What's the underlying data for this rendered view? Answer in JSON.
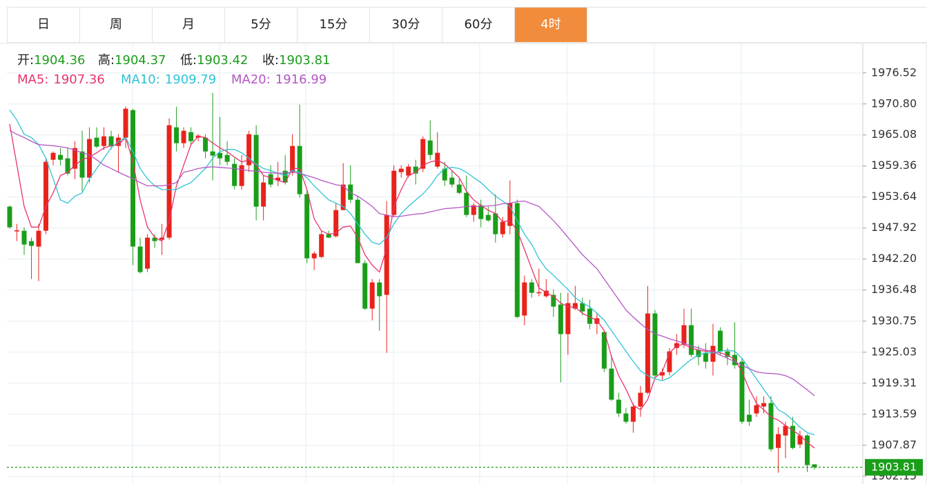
{
  "tabs": [
    "日",
    "周",
    "月",
    "5分",
    "15分",
    "30分",
    "60分",
    "4时"
  ],
  "active_tab": 7,
  "chart_data": {
    "type": "candlestick",
    "ohlc_labels": [
      "开:",
      "高:",
      "低:",
      "收:"
    ],
    "up_color": "#e8231b",
    "down_color": "#1a9e1a",
    "ylim": [
      1902.0,
      1981.7
    ],
    "yticks": [
      1976.52,
      {
        "value": 1970.8,
        "label": "1970.80"
      },
      1965.08,
      1959.36,
      1953.64,
      1947.92,
      {
        "value": 1942.2,
        "label": "1942.20"
      },
      1936.48,
      1930.75,
      1925.03,
      1919.31,
      1913.59,
      1907.87,
      1902.15
    ],
    "grid": true,
    "ohlc": [
      [
        1951.87,
        1952.12,
        1947.8,
        1948.06
      ],
      [
        1947.3,
        1948.69,
        1945.51,
        1947.5
      ],
      [
        1947.42,
        1948.06,
        1942.97,
        1944.88
      ],
      [
        1945.51,
        1946.15,
        1938.52,
        1944.63
      ],
      [
        1944.5,
        1948.69,
        1938.14,
        1947.42
      ],
      [
        1947.42,
        1960.77,
        1946.79,
        1960.13
      ],
      [
        1960.51,
        1962.04,
        1959.5,
        1961.78
      ],
      [
        1961.4,
        1962.67,
        1959.5,
        1960.51
      ],
      [
        1960.77,
        1962.67,
        1957.59,
        1957.97
      ],
      [
        1958.86,
        1963.94,
        1956.95,
        1962.67
      ],
      [
        1962.04,
        1965.85,
        1954.67,
        1957.21
      ],
      [
        1957.21,
        1966.49,
        1956.32,
        1964.33
      ],
      [
        1964.58,
        1966.49,
        1962.67,
        1962.93
      ],
      [
        1963.05,
        1966.49,
        1962.29,
        1964.83
      ],
      [
        1964.83,
        1965.85,
        1962.42,
        1963.05
      ],
      [
        1963.05,
        1965.22,
        1958.22,
        1964.58
      ],
      [
        1964.58,
        1970.3,
        1962.67,
        1969.92
      ],
      [
        1969.66,
        1969.92,
        1941.07,
        1944.5
      ],
      [
        1944.5,
        1946.15,
        1939.54,
        1939.8
      ],
      [
        1940.43,
        1946.79,
        1939.8,
        1946.15
      ],
      [
        1946.15,
        1946.79,
        1944.24,
        1945.51
      ],
      [
        1945.77,
        1948.69,
        1942.97,
        1946.15
      ],
      [
        1946.15,
        1968.14,
        1945.77,
        1966.87
      ],
      [
        1966.49,
        1970.3,
        1962.04,
        1963.56
      ],
      [
        1963.56,
        1966.49,
        1962.67,
        1965.85
      ],
      [
        1965.6,
        1966.49,
        1963.31,
        1963.94
      ],
      [
        1964.58,
        1965.22,
        1963.94,
        1964.96
      ],
      [
        1964.58,
        1965.22,
        1960.77,
        1962.04
      ],
      [
        1962.04,
        1972.84,
        1956.7,
        1961.28
      ],
      [
        1961.78,
        1968.39,
        1959.5,
        1960.77
      ],
      [
        1961.4,
        1963.94,
        1959.5,
        1960.13
      ],
      [
        1959.75,
        1960.77,
        1955.05,
        1955.68
      ],
      [
        1955.68,
        1961.4,
        1955.05,
        1959.5
      ],
      [
        1959.5,
        1965.85,
        1958.22,
        1965.22
      ],
      [
        1965.09,
        1966.87,
        1949.33,
        1951.87
      ],
      [
        1951.87,
        1957.59,
        1949.33,
        1956.32
      ],
      [
        1957.84,
        1959.5,
        1955.43,
        1955.94
      ],
      [
        1956.7,
        1960.13,
        1955.68,
        1957.21
      ],
      [
        1958.48,
        1961.4,
        1955.94,
        1956.32
      ],
      [
        1958.22,
        1965.22,
        1957.59,
        1963.05
      ],
      [
        1963.05,
        1970.68,
        1953.52,
        1954.16
      ],
      [
        1954.16,
        1955.05,
        1941.45,
        1942.34
      ],
      [
        1942.34,
        1943.61,
        1940.18,
        1943.23
      ],
      [
        1942.59,
        1947.42,
        1942.34,
        1946.79
      ],
      [
        1946.79,
        1947.42,
        1946.15,
        1946.15
      ],
      [
        1946.41,
        1952.51,
        1946.15,
        1951.23
      ],
      [
        1951.23,
        1959.88,
        1951.23,
        1955.94
      ],
      [
        1955.94,
        1959.5,
        1952.51,
        1953.14
      ],
      [
        1953.14,
        1953.78,
        1941.45,
        1941.45
      ],
      [
        1941.45,
        1941.96,
        1932.8,
        1933.06
      ],
      [
        1933.06,
        1938.52,
        1930.9,
        1937.89
      ],
      [
        1937.89,
        1938.52,
        1928.99,
        1935.35
      ],
      [
        1935.6,
        1952.89,
        1924.92,
        1950.34
      ],
      [
        1950.34,
        1959.5,
        1949.96,
        1958.48
      ],
      [
        1958.22,
        1959.5,
        1957.21,
        1958.86
      ],
      [
        1957.59,
        1959.75,
        1957.21,
        1959.24
      ],
      [
        1959.24,
        1960.51,
        1955.94,
        1957.97
      ],
      [
        1958.86,
        1964.83,
        1958.22,
        1964.33
      ],
      [
        1964.07,
        1967.76,
        1960.51,
        1961.4
      ],
      [
        1959.24,
        1965.6,
        1958.86,
        1961.78
      ],
      [
        1958.86,
        1960.13,
        1955.68,
        1956.7
      ],
      [
        1957.21,
        1958.48,
        1955.43,
        1955.94
      ],
      [
        1955.94,
        1956.95,
        1954.16,
        1954.41
      ],
      [
        1954.41,
        1957.59,
        1949.96,
        1950.34
      ],
      [
        1950.34,
        1952.51,
        1949.07,
        1952.12
      ],
      [
        1952.12,
        1953.14,
        1948.06,
        1949.58
      ],
      [
        1950.34,
        1951.87,
        1949.07,
        1949.33
      ],
      [
        1950.6,
        1954.16,
        1945.26,
        1946.79
      ],
      [
        1946.79,
        1949.96,
        1946.15,
        1949.07
      ],
      [
        1948.31,
        1956.7,
        1946.79,
        1952.51
      ],
      [
        1952.51,
        1953.14,
        1931.28,
        1931.53
      ],
      [
        1931.79,
        1939.16,
        1930.01,
        1937.89
      ],
      [
        1937.89,
        1938.52,
        1935.09,
        1935.98
      ],
      [
        1935.9,
        1940.43,
        1935.35,
        1936.1
      ],
      [
        1935.35,
        1938.52,
        1935.09,
        1936.36
      ],
      [
        1935.6,
        1936.62,
        1931.53,
        1933.44
      ],
      [
        1933.82,
        1935.98,
        1919.46,
        1928.36
      ],
      [
        1928.36,
        1935.98,
        1924.54,
        1934.08
      ],
      [
        1933.06,
        1937.25,
        1932.8,
        1934.08
      ],
      [
        1934.08,
        1935.09,
        1931.79,
        1932.55
      ],
      [
        1933.06,
        1934.71,
        1929.25,
        1930.26
      ],
      [
        1930.26,
        1932.17,
        1928.36,
        1931.28
      ],
      [
        1928.74,
        1928.99,
        1921.37,
        1922.0
      ],
      [
        1922.0,
        1924.54,
        1916.03,
        1916.28
      ],
      [
        1916.28,
        1917.55,
        1913.1,
        1913.74
      ],
      [
        1913.74,
        1914.76,
        1911.83,
        1912.21
      ],
      [
        1912.21,
        1915.65,
        1910.18,
        1915.01
      ],
      [
        1915.01,
        1918.82,
        1913.1,
        1917.55
      ],
      [
        1917.55,
        1937.25,
        1917.3,
        1932.17
      ],
      [
        1932.17,
        1932.8,
        1920.09,
        1920.73
      ],
      [
        1920.73,
        1922.0,
        1919.84,
        1921.37
      ],
      [
        1921.37,
        1925.81,
        1920.73,
        1925.18
      ],
      [
        1925.81,
        1928.36,
        1924.54,
        1926.7
      ],
      [
        1926.45,
        1933.06,
        1925.81,
        1930.01
      ],
      [
        1930.01,
        1933.06,
        1924.16,
        1924.54
      ],
      [
        1925.43,
        1926.2,
        1922.64,
        1924.16
      ],
      [
        1924.92,
        1926.7,
        1922.0,
        1923.27
      ],
      [
        1923.27,
        1930.26,
        1920.73,
        1926.2
      ],
      [
        1928.99,
        1929.63,
        1924.54,
        1925.18
      ],
      [
        1925.18,
        1925.81,
        1922.64,
        1924.16
      ],
      [
        1924.54,
        1930.52,
        1922.0,
        1922.64
      ],
      [
        1923.27,
        1923.91,
        1911.83,
        1912.21
      ],
      [
        1913.49,
        1916.28,
        1911.45,
        1912.21
      ],
      [
        1913.74,
        1916.92,
        1913.1,
        1915.27
      ],
      [
        1915.01,
        1916.92,
        1913.74,
        1915.65
      ],
      [
        1915.65,
        1916.92,
        1906.75,
        1907.13
      ],
      [
        1907.38,
        1911.2,
        1902.81,
        1909.93
      ],
      [
        1909.67,
        1912.21,
        1905.48,
        1911.45
      ],
      [
        1911.45,
        1913.1,
        1907.13,
        1907.38
      ],
      [
        1908.02,
        1910.56,
        1907.38,
        1909.67
      ],
      [
        1909.67,
        1909.93,
        1902.94,
        1904.21
      ],
      [
        1904.36,
        1904.37,
        1903.42,
        1903.81
      ]
    ],
    "series": [
      {
        "name": "MA5:",
        "color": "#e8336c",
        "values": [
          1967.1,
          1959.5,
          1951.9,
          1948.1,
          1948.1,
          1951.9,
          1954.4,
          1957.6,
          1958.2,
          1959.5,
          1960.5,
          1961.0,
          1961.8,
          1962.7,
          1963.1,
          1963.3,
          1964.6,
          1960.1,
          1953.1,
          1948.1,
          1946.2,
          1945.5,
          1949.3,
          1955.7,
          1959.5,
          1963.3,
          1964.8,
          1964.6,
          1963.6,
          1962.7,
          1962.0,
          1961.0,
          1960.1,
          1960.5,
          1959.5,
          1957.6,
          1957.2,
          1956.7,
          1956.3,
          1958.9,
          1958.9,
          1955.0,
          1949.6,
          1947.4,
          1946.8,
          1947.0,
          1948.1,
          1948.3,
          1946.2,
          1943.0,
          1941.1,
          1939.8,
          1944.2,
          1951.9,
          1955.0,
          1957.6,
          1958.2,
          1959.5,
          1960.1,
          1960.4,
          1959.7,
          1958.5,
          1957.2,
          1954.7,
          1953.1,
          1952.1,
          1951.2,
          1950.6,
          1949.1,
          1949.3,
          1947.4,
          1944.0,
          1940.4,
          1936.9,
          1936.0,
          1935.3,
          1934.1,
          1933.4,
          1933.3,
          1932.2,
          1931.5,
          1930.9,
          1929.0,
          1924.2,
          1920.7,
          1918.2,
          1915.3,
          1914.4,
          1916.3,
          1920.3,
          1921.4,
          1924.9,
          1926.2,
          1926.5,
          1925.8,
          1925.4,
          1925.2,
          1925.2,
          1924.9,
          1924.5,
          1923.7,
          1921.4,
          1918.2,
          1915.6,
          1914.4,
          1913.1,
          1912.5,
          1911.5,
          1910.6,
          1909.7,
          1908.4,
          1907.36
        ]
      },
      {
        "name": "MA10:",
        "color": "#2ec3d6",
        "values": [
          1969.7,
          1967.8,
          1965.2,
          1964.6,
          1963.3,
          1960.8,
          1957.0,
          1953.1,
          1952.5,
          1953.8,
          1954.4,
          1957.0,
          1958.9,
          1960.8,
          1962.7,
          1963.9,
          1964.6,
          1962.0,
          1958.9,
          1957.0,
          1955.7,
          1955.0,
          1955.0,
          1955.0,
          1955.7,
          1956.3,
          1957.6,
          1958.9,
          1960.8,
          1962.0,
          1962.4,
          1962.4,
          1961.8,
          1960.8,
          1959.7,
          1958.9,
          1958.5,
          1958.0,
          1957.6,
          1958.5,
          1958.2,
          1957.2,
          1955.7,
          1954.4,
          1953.1,
          1952.5,
          1951.9,
          1950.6,
          1948.7,
          1946.8,
          1945.3,
          1944.9,
          1946.2,
          1948.7,
          1950.6,
          1951.9,
          1953.1,
          1954.2,
          1955.7,
          1957.6,
          1958.9,
          1959.1,
          1958.9,
          1958.2,
          1957.2,
          1956.3,
          1955.0,
          1953.8,
          1952.9,
          1951.9,
          1949.3,
          1946.8,
          1944.9,
          1942.3,
          1940.4,
          1939.2,
          1937.9,
          1936.6,
          1935.1,
          1934.1,
          1933.4,
          1932.2,
          1930.9,
          1929.0,
          1927.1,
          1925.2,
          1923.3,
          1921.6,
          1920.7,
          1920.1,
          1919.8,
          1920.3,
          1921.4,
          1922.6,
          1923.7,
          1924.5,
          1924.9,
          1924.9,
          1925.2,
          1925.4,
          1925.2,
          1923.9,
          1922.0,
          1920.1,
          1918.2,
          1916.3,
          1914.4,
          1913.7,
          1912.5,
          1911.2,
          1910.2,
          1909.79
        ]
      },
      {
        "name": "MA20:",
        "color": "#b455c4",
        "values": [
          1965.9,
          1965.2,
          1964.6,
          1963.9,
          1963.3,
          1963.2,
          1963.1,
          1962.9,
          1962.7,
          1962.3,
          1961.8,
          1961.4,
          1960.5,
          1959.5,
          1958.9,
          1958.2,
          1957.6,
          1957.0,
          1956.3,
          1955.7,
          1955.7,
          1955.7,
          1955.9,
          1956.3,
          1958.2,
          1958.5,
          1958.9,
          1959.1,
          1959.2,
          1959.1,
          1959.0,
          1958.9,
          1958.7,
          1958.5,
          1958.4,
          1958.2,
          1958.1,
          1958.0,
          1958.1,
          1958.2,
          1958.0,
          1957.6,
          1957.2,
          1956.7,
          1956.3,
          1955.9,
          1955.7,
          1954.4,
          1953.8,
          1952.9,
          1951.9,
          1950.6,
          1950.3,
          1950.0,
          1950.1,
          1950.3,
          1950.5,
          1950.6,
          1950.9,
          1951.2,
          1951.5,
          1951.6,
          1951.7,
          1951.9,
          1951.9,
          1951.9,
          1952.0,
          1952.1,
          1952.4,
          1952.5,
          1952.8,
          1952.9,
          1952.4,
          1951.9,
          1950.6,
          1949.3,
          1947.8,
          1946.2,
          1944.6,
          1943.0,
          1941.7,
          1940.4,
          1938.5,
          1936.6,
          1934.7,
          1932.8,
          1931.5,
          1930.3,
          1929.2,
          1928.4,
          1928.0,
          1927.5,
          1927.1,
          1926.7,
          1926.2,
          1925.8,
          1925.4,
          1925.2,
          1924.5,
          1923.9,
          1923.3,
          1922.6,
          1922.0,
          1921.4,
          1921.2,
          1921.1,
          1921.0,
          1920.7,
          1920.1,
          1919.1,
          1918.1,
          1916.99
        ]
      }
    ]
  }
}
